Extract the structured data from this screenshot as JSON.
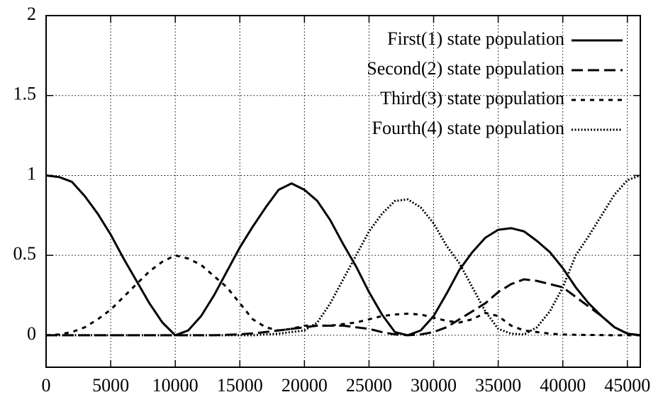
{
  "chart_data": {
    "type": "line",
    "x": [
      0,
      1000,
      2000,
      3000,
      4000,
      5000,
      6000,
      7000,
      8000,
      9000,
      10000,
      11000,
      12000,
      13000,
      14000,
      15000,
      16000,
      17000,
      18000,
      19000,
      20000,
      21000,
      22000,
      23000,
      24000,
      25000,
      26000,
      27000,
      28000,
      29000,
      30000,
      31000,
      32000,
      33000,
      34000,
      35000,
      36000,
      37000,
      38000,
      39000,
      40000,
      41000,
      42000,
      43000,
      44000,
      45000,
      46000
    ],
    "series": [
      {
        "name": "First(1) state population",
        "color": "#000000",
        "dash": "solid",
        "values": [
          1.0,
          0.99,
          0.96,
          0.87,
          0.76,
          0.63,
          0.48,
          0.34,
          0.2,
          0.08,
          0.0,
          0.03,
          0.12,
          0.25,
          0.4,
          0.55,
          0.68,
          0.8,
          0.91,
          0.95,
          0.91,
          0.84,
          0.72,
          0.57,
          0.43,
          0.27,
          0.13,
          0.02,
          0.0,
          0.03,
          0.12,
          0.26,
          0.41,
          0.52,
          0.61,
          0.66,
          0.67,
          0.65,
          0.59,
          0.52,
          0.42,
          0.3,
          0.2,
          0.12,
          0.05,
          0.01,
          0.0
        ]
      },
      {
        "name": "Second(2) state population",
        "color": "#000000",
        "dash": "dashed",
        "values": [
          0,
          0,
          0,
          0,
          0,
          0,
          0,
          0,
          0,
          0,
          0,
          0,
          0,
          0,
          0.003,
          0.006,
          0.012,
          0.02,
          0.03,
          0.04,
          0.05,
          0.06,
          0.06,
          0.06,
          0.05,
          0.04,
          0.02,
          0.005,
          0,
          0.005,
          0.02,
          0.05,
          0.1,
          0.15,
          0.2,
          0.27,
          0.32,
          0.35,
          0.34,
          0.32,
          0.3,
          0.24,
          0.18,
          0.12,
          0.05,
          0.01,
          0
        ]
      },
      {
        "name": "Third(3) state population",
        "color": "#000000",
        "dash": "short-dashed",
        "values": [
          0,
          0.005,
          0.02,
          0.05,
          0.1,
          0.16,
          0.24,
          0.32,
          0.4,
          0.46,
          0.5,
          0.48,
          0.44,
          0.37,
          0.3,
          0.2,
          0.1,
          0.05,
          0.03,
          0.04,
          0.06,
          0.06,
          0.06,
          0.07,
          0.08,
          0.1,
          0.12,
          0.13,
          0.135,
          0.13,
          0.11,
          0.09,
          0.08,
          0.1,
          0.14,
          0.12,
          0.06,
          0.03,
          0.02,
          0.01,
          0.005,
          0.003,
          0.002,
          0.001,
          0,
          0,
          0
        ]
      },
      {
        "name": "Fourth(4) state population",
        "color": "#000000",
        "dash": "dotted",
        "values": [
          0,
          0,
          0,
          0,
          0,
          0,
          0,
          0,
          0,
          0,
          0,
          0,
          0,
          0,
          0,
          0,
          0,
          0.005,
          0.01,
          0.02,
          0.03,
          0.08,
          0.2,
          0.35,
          0.5,
          0.65,
          0.76,
          0.84,
          0.85,
          0.8,
          0.7,
          0.56,
          0.45,
          0.3,
          0.15,
          0.04,
          0.01,
          0.005,
          0.05,
          0.15,
          0.3,
          0.5,
          0.62,
          0.75,
          0.88,
          0.97,
          1.0
        ]
      }
    ],
    "xlim": [
      0,
      46000
    ],
    "ylim": [
      -0.2,
      2
    ],
    "xticks": [
      0,
      5000,
      10000,
      15000,
      20000,
      25000,
      30000,
      35000,
      40000,
      45000
    ],
    "yticks": [
      0,
      0.5,
      1,
      1.5,
      2
    ],
    "grid": true,
    "legend": "top-right"
  }
}
